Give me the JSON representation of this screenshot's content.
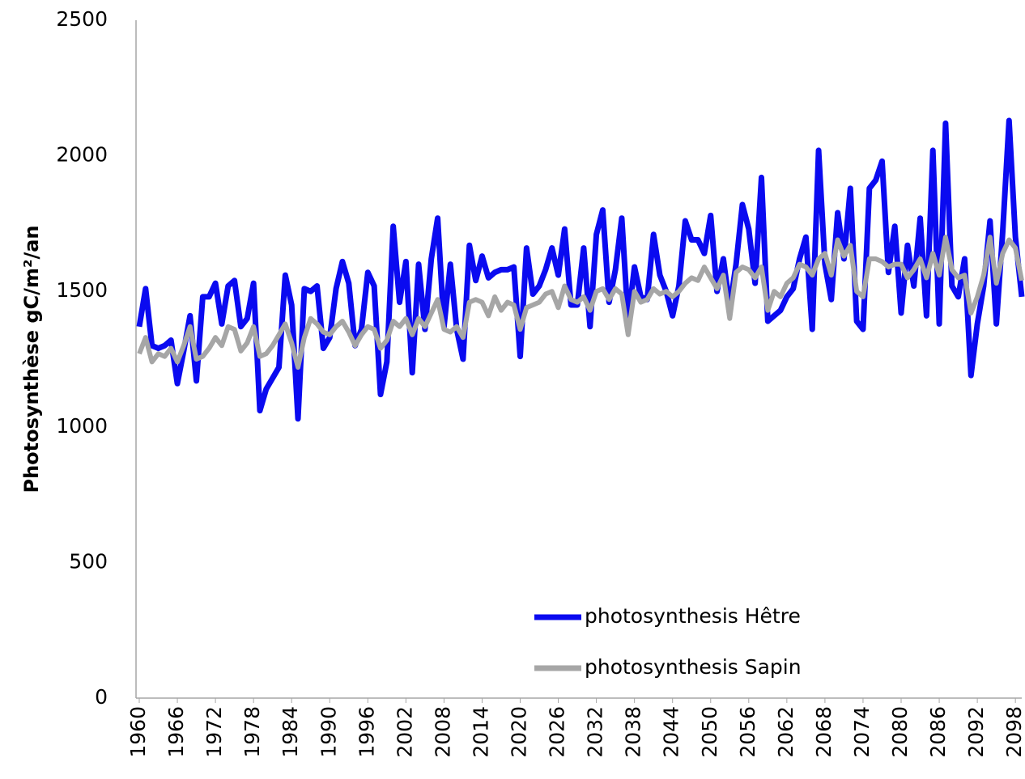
{
  "chart_data": {
    "type": "line",
    "y_label": "Photosynthèse gC/m²/an",
    "x": [
      1960,
      1961,
      1962,
      1963,
      1964,
      1965,
      1966,
      1967,
      1968,
      1969,
      1970,
      1971,
      1972,
      1973,
      1974,
      1975,
      1976,
      1977,
      1978,
      1979,
      1980,
      1981,
      1982,
      1983,
      1984,
      1985,
      1986,
      1987,
      1988,
      1989,
      1990,
      1991,
      1992,
      1993,
      1994,
      1995,
      1996,
      1997,
      1998,
      1999,
      2000,
      2001,
      2002,
      2003,
      2004,
      2005,
      2006,
      2007,
      2008,
      2009,
      2010,
      2011,
      2012,
      2013,
      2014,
      2015,
      2016,
      2017,
      2018,
      2019,
      2020,
      2021,
      2022,
      2023,
      2024,
      2025,
      2026,
      2027,
      2028,
      2029,
      2030,
      2031,
      2032,
      2033,
      2034,
      2035,
      2036,
      2037,
      2038,
      2039,
      2040,
      2041,
      2042,
      2043,
      2044,
      2045,
      2046,
      2047,
      2048,
      2049,
      2050,
      2051,
      2052,
      2053,
      2054,
      2055,
      2056,
      2057,
      2058,
      2059,
      2060,
      2061,
      2062,
      2063,
      2064,
      2065,
      2066,
      2067,
      2068,
      2069,
      2070,
      2071,
      2072,
      2073,
      2074,
      2075,
      2076,
      2077,
      2078,
      2079,
      2080,
      2081,
      2082,
      2083,
      2084,
      2085,
      2086,
      2087,
      2088,
      2089,
      2090,
      2091,
      2092,
      2093,
      2094,
      2095,
      2096,
      2097,
      2098,
      2099
    ],
    "series": [
      {
        "name": "photosynthesis Hêtre",
        "color": "#0a0af0",
        "values": [
          1370,
          1510,
          1300,
          1290,
          1300,
          1320,
          1160,
          1280,
          1410,
          1170,
          1480,
          1480,
          1530,
          1380,
          1520,
          1540,
          1370,
          1400,
          1530,
          1060,
          1140,
          1180,
          1220,
          1560,
          1450,
          1030,
          1510,
          1500,
          1520,
          1290,
          1330,
          1510,
          1610,
          1530,
          1300,
          1360,
          1570,
          1520,
          1120,
          1240,
          1740,
          1460,
          1610,
          1200,
          1600,
          1360,
          1620,
          1770,
          1370,
          1600,
          1360,
          1250,
          1670,
          1540,
          1630,
          1550,
          1570,
          1580,
          1580,
          1590,
          1260,
          1660,
          1490,
          1520,
          1580,
          1660,
          1560,
          1730,
          1450,
          1450,
          1660,
          1370,
          1710,
          1800,
          1460,
          1580,
          1770,
          1390,
          1590,
          1480,
          1470,
          1710,
          1560,
          1500,
          1410,
          1520,
          1760,
          1690,
          1690,
          1640,
          1780,
          1500,
          1620,
          1440,
          1600,
          1820,
          1730,
          1530,
          1920,
          1390,
          1410,
          1430,
          1480,
          1510,
          1620,
          1700,
          1360,
          2020,
          1600,
          1470,
          1790,
          1620,
          1880,
          1390,
          1360,
          1880,
          1910,
          1980,
          1570,
          1740,
          1420,
          1670,
          1520,
          1770,
          1410,
          2020,
          1380,
          2120,
          1520,
          1480,
          1620,
          1190,
          1380,
          1520,
          1760,
          1380,
          1720,
          2130,
          1700,
          1480
        ]
      },
      {
        "name": "photosynthesis Sapin",
        "color": "#a6a6a6",
        "values": [
          1270,
          1330,
          1240,
          1270,
          1260,
          1290,
          1240,
          1300,
          1370,
          1250,
          1260,
          1290,
          1330,
          1300,
          1370,
          1360,
          1280,
          1310,
          1370,
          1260,
          1270,
          1300,
          1340,
          1380,
          1310,
          1220,
          1330,
          1400,
          1380,
          1350,
          1340,
          1370,
          1390,
          1350,
          1300,
          1340,
          1370,
          1360,
          1290,
          1320,
          1390,
          1370,
          1400,
          1340,
          1400,
          1370,
          1420,
          1470,
          1360,
          1350,
          1370,
          1330,
          1460,
          1470,
          1460,
          1410,
          1480,
          1430,
          1460,
          1450,
          1360,
          1440,
          1450,
          1460,
          1490,
          1500,
          1440,
          1520,
          1470,
          1460,
          1480,
          1430,
          1500,
          1510,
          1470,
          1510,
          1490,
          1340,
          1500,
          1460,
          1470,
          1510,
          1490,
          1500,
          1480,
          1500,
          1530,
          1550,
          1540,
          1590,
          1550,
          1510,
          1560,
          1400,
          1570,
          1590,
          1580,
          1550,
          1590,
          1430,
          1500,
          1480,
          1530,
          1550,
          1600,
          1590,
          1560,
          1620,
          1640,
          1560,
          1690,
          1630,
          1670,
          1500,
          1480,
          1620,
          1620,
          1610,
          1590,
          1600,
          1600,
          1550,
          1580,
          1620,
          1550,
          1640,
          1560,
          1700,
          1580,
          1550,
          1560,
          1420,
          1480,
          1560,
          1700,
          1530,
          1640,
          1690,
          1660,
          1540
        ]
      }
    ],
    "xlim": [
      1960,
      2099
    ],
    "xticks": [
      1960,
      1966,
      1972,
      1978,
      1984,
      1990,
      1996,
      2002,
      2008,
      2014,
      2020,
      2026,
      2032,
      2038,
      2044,
      2050,
      2056,
      2062,
      2068,
      2074,
      2080,
      2086,
      2092,
      2098
    ],
    "ylim": [
      0,
      2500
    ],
    "yticks": [
      0,
      500,
      1000,
      1500,
      2000,
      2500
    ],
    "grid": false,
    "legend": "lower right"
  }
}
